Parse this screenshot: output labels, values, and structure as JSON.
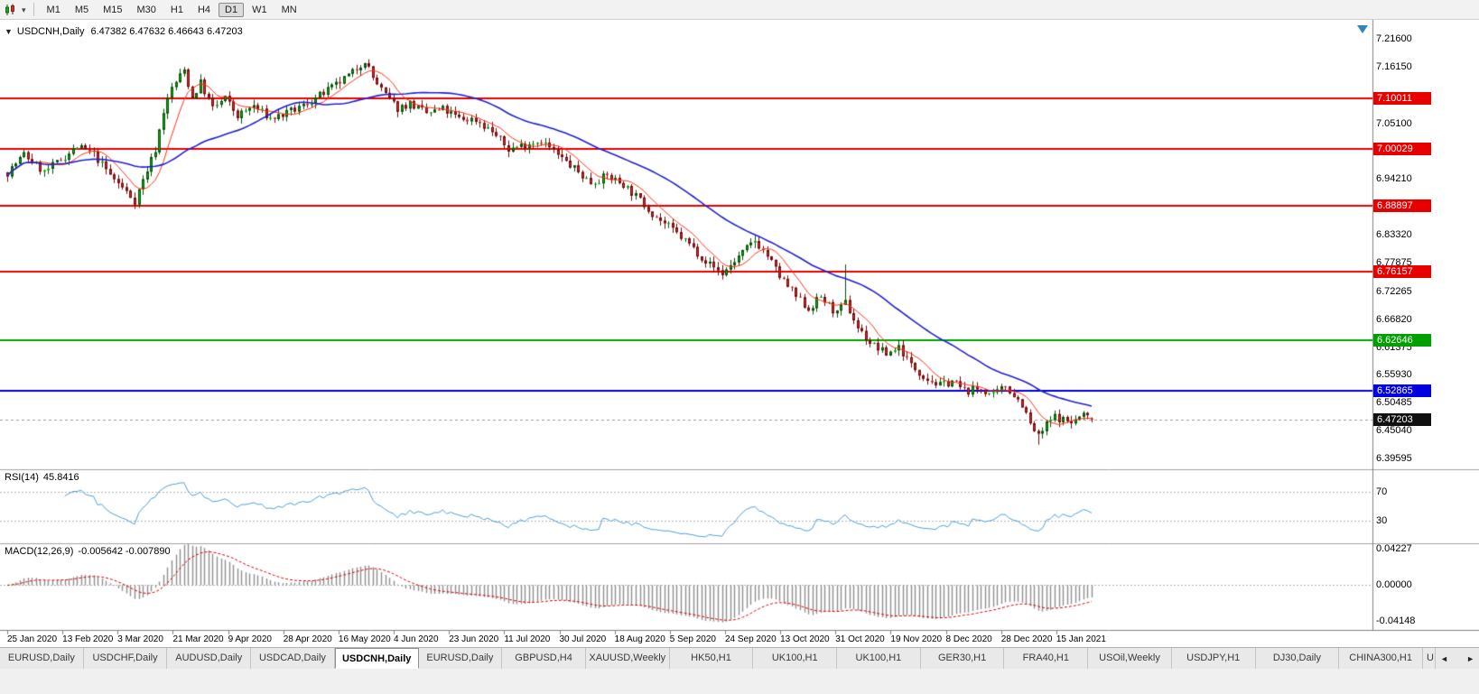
{
  "toolbar": {
    "chart_type_icon": "candlestick-chart-icon",
    "dropdown_caret": "▾",
    "timeframes": [
      "M1",
      "M5",
      "M15",
      "M30",
      "H1",
      "H4",
      "D1",
      "W1",
      "MN"
    ],
    "active_timeframe": "D1"
  },
  "chart_header": {
    "collapse_arrow": "▼",
    "title": "USDCNH,Daily",
    "ohlc": "6.47382 6.47632 6.46643 6.47203"
  },
  "chart_data": {
    "type": "candlestick",
    "symbol": "USDCNH",
    "timeframe": "Daily",
    "ohlc_display": {
      "open": 6.47382,
      "high": 6.47632,
      "low": 6.46643,
      "close": 6.47203
    },
    "y_axis_ticks": [
      "7.21600",
      "7.16150",
      "7.05100",
      "6.94210",
      "6.83320",
      "6.77875",
      "6.72265",
      "6.66820",
      "6.61375",
      "6.55930",
      "6.50485",
      "6.45040",
      "6.39595"
    ],
    "y_range": {
      "top": 7.2495,
      "bottom": 6.3766
    },
    "horizontal_lines": [
      {
        "price": 7.10011,
        "label": "7.10011",
        "color": "#e80000"
      },
      {
        "price": 7.00029,
        "label": "7.00029",
        "color": "#e80000"
      },
      {
        "price": 6.88897,
        "label": "6.88897",
        "color": "#e80000"
      },
      {
        "price": 6.76157,
        "label": "6.76157",
        "color": "#e80000"
      },
      {
        "price": 6.62646,
        "label": "6.62646",
        "color": "#00a000"
      },
      {
        "price": 6.52865,
        "label": "6.52865",
        "color": "#0000e0"
      }
    ],
    "current_price": {
      "price": 6.47203,
      "label": "6.47203",
      "badge_color": "#101010"
    },
    "x_axis_dates": [
      "25 Jan 2020",
      "13 Feb 2020",
      "3 Mar 2020",
      "21 Mar 2020",
      "9 Apr 2020",
      "28 Apr 2020",
      "16 May 2020",
      "4 Jun 2020",
      "23 Jun 2020",
      "11 Jul 2020",
      "30 Jul 2020",
      "18 Aug 2020",
      "5 Sep 2020",
      "24 Sep 2020",
      "13 Oct 2020",
      "31 Oct 2020",
      "19 Nov 2020",
      "8 Dec 2020",
      "28 Dec 2020",
      "15 Jan 2021"
    ],
    "bars": {
      "count": 265,
      "up_color": "#0cb00c",
      "up_border": "#0a4d0a",
      "down_color": "#d92b2b",
      "down_border": "#6b0d0d",
      "price_path_anchors": [
        [
          0,
          6.955
        ],
        [
          4,
          6.99
        ],
        [
          9,
          6.955
        ],
        [
          13,
          6.98
        ],
        [
          17,
          7.005
        ],
        [
          21,
          6.99
        ],
        [
          25,
          6.95
        ],
        [
          28,
          6.925
        ],
        [
          31,
          6.9
        ],
        [
          34,
          6.96
        ],
        [
          36,
          7.0
        ],
        [
          38,
          7.075
        ],
        [
          40,
          7.12
        ],
        [
          43,
          7.155
        ],
        [
          45,
          7.1
        ],
        [
          47,
          7.13
        ],
        [
          50,
          7.08
        ],
        [
          53,
          7.1
        ],
        [
          56,
          7.065
        ],
        [
          60,
          7.085
        ],
        [
          64,
          7.06
        ],
        [
          68,
          7.07
        ],
        [
          72,
          7.085
        ],
        [
          76,
          7.105
        ],
        [
          80,
          7.125
        ],
        [
          84,
          7.15
        ],
        [
          87,
          7.175
        ],
        [
          89,
          7.14
        ],
        [
          92,
          7.105
        ],
        [
          95,
          7.08
        ],
        [
          98,
          7.09
        ],
        [
          102,
          7.07
        ],
        [
          106,
          7.078
        ],
        [
          110,
          7.06
        ],
        [
          114,
          7.058
        ],
        [
          118,
          7.035
        ],
        [
          122,
          7.0
        ],
        [
          126,
          7.01
        ],
        [
          130,
          7.018
        ],
        [
          134,
          6.988
        ],
        [
          138,
          6.962
        ],
        [
          142,
          6.935
        ],
        [
          146,
          6.948
        ],
        [
          150,
          6.932
        ],
        [
          154,
          6.9
        ],
        [
          158,
          6.868
        ],
        [
          162,
          6.842
        ],
        [
          166,
          6.815
        ],
        [
          170,
          6.782
        ],
        [
          174,
          6.757
        ],
        [
          178,
          6.79
        ],
        [
          182,
          6.822
        ],
        [
          185,
          6.792
        ],
        [
          188,
          6.752
        ],
        [
          192,
          6.712
        ],
        [
          195,
          6.688
        ],
        [
          198,
          6.712
        ],
        [
          202,
          6.678
        ],
        [
          204,
          6.7
        ],
        [
          207,
          6.652
        ],
        [
          210,
          6.622
        ],
        [
          214,
          6.6
        ],
        [
          217,
          6.615
        ],
        [
          220,
          6.578
        ],
        [
          224,
          6.552
        ],
        [
          227,
          6.538
        ],
        [
          230,
          6.548
        ],
        [
          233,
          6.528
        ],
        [
          237,
          6.532
        ],
        [
          240,
          6.518
        ],
        [
          243,
          6.538
        ],
        [
          247,
          6.502
        ],
        [
          249,
          6.462
        ],
        [
          251,
          6.438
        ],
        [
          253,
          6.462
        ],
        [
          255,
          6.478
        ],
        [
          259,
          6.466
        ],
        [
          262,
          6.482
        ],
        [
          264,
          6.472
        ]
      ],
      "spikes": [
        {
          "index": 204,
          "high": 6.775
        },
        {
          "index": 251,
          "low": 6.423
        }
      ],
      "last_bar": {
        "open": 6.47382,
        "high": 6.47632,
        "low": 6.46643,
        "close": 6.47203
      }
    },
    "moving_averages": [
      {
        "period": 8,
        "color": "#ff3014",
        "width": 1
      },
      {
        "period": 34,
        "color": "#2121cf",
        "width": 1.6
      }
    ]
  },
  "rsi_panel": {
    "name": "RSI(14)",
    "value": "45.8416",
    "period": 14,
    "levels": [
      70,
      30
    ],
    "level_labels": [
      "70",
      "30"
    ],
    "line_color": "#4c9fd6"
  },
  "macd_panel": {
    "name": "MACD(12,26,9)",
    "values": "-0.005642 -0.007890",
    "fast": 12,
    "slow": 26,
    "signal": 9,
    "axis_labels": [
      "0.04227",
      "0.00000",
      "-0.04148"
    ],
    "axis_top": 0.04227,
    "axis_bottom": -0.04148,
    "histogram_color": "#8f8f8f",
    "signal_color": "#d40000"
  },
  "tab_bar": {
    "tabs": [
      "EURUSD,Daily",
      "USDCHF,Daily",
      "AUDUSD,Daily",
      "USDCAD,Daily",
      "USDCNH,Daily",
      "EURUSD,Daily",
      "GBPUSD,H4",
      "XAUUSD,Weekly",
      "HK50,H1",
      "UK100,H1",
      "UK100,H1",
      "GER30,H1",
      "FRA40,H1",
      "USOil,Weekly",
      "USDJPY,H1",
      "DJ30,Daily",
      "CHINA300,H1",
      "U"
    ],
    "active_index": 4,
    "scroll_left": "◄",
    "scroll_right": "►"
  }
}
